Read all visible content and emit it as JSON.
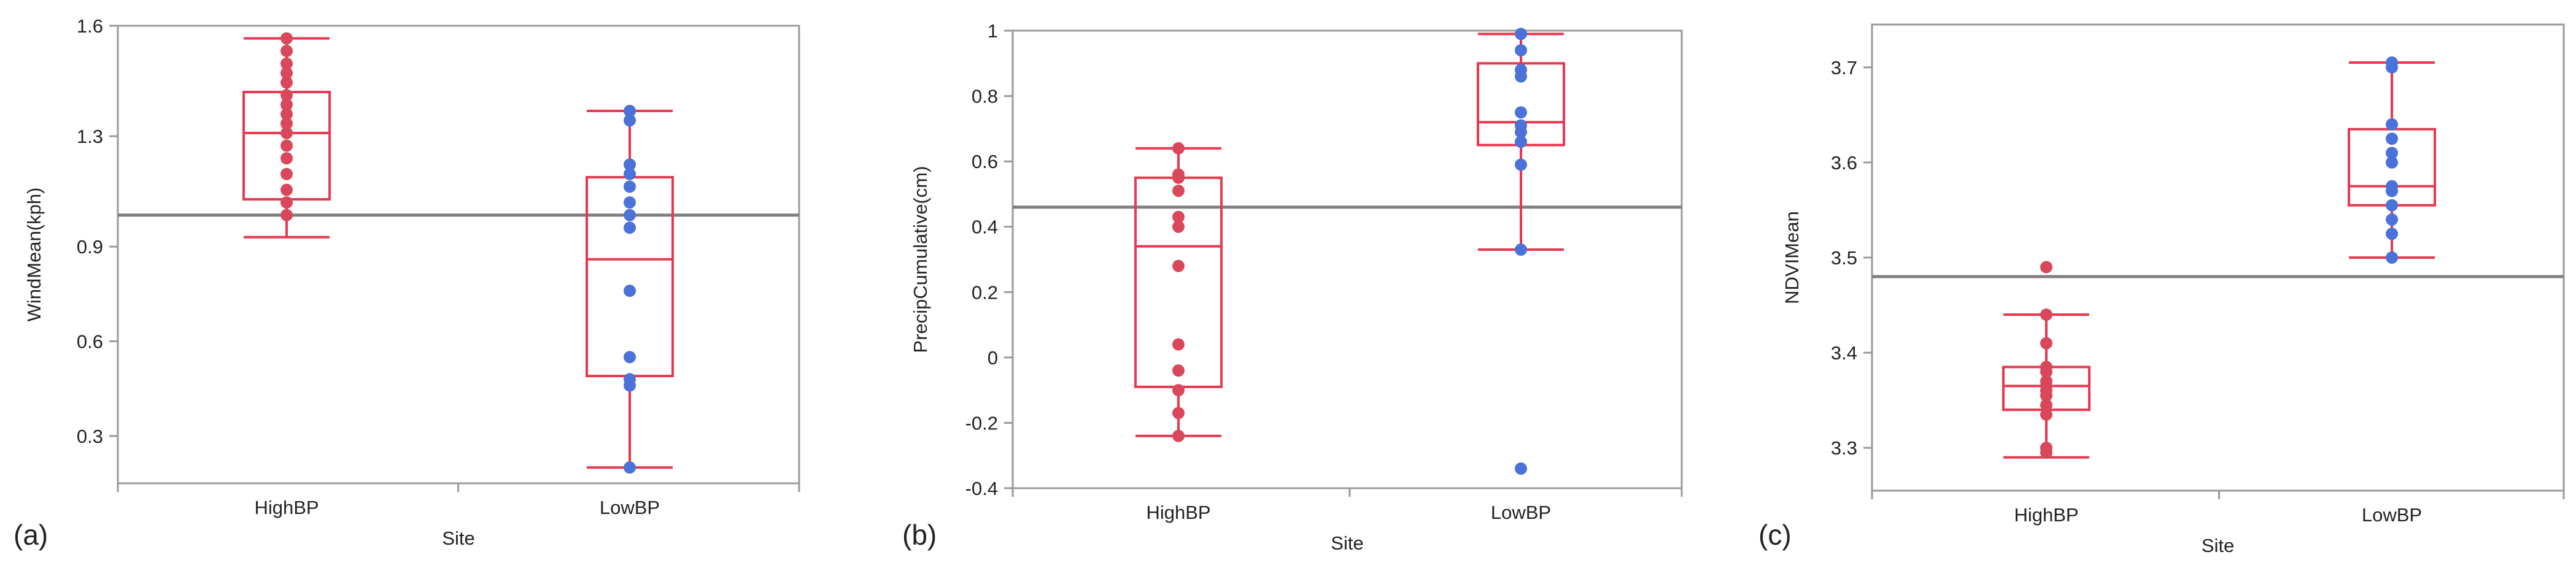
{
  "colors": {
    "high": "#d9475a",
    "low": "#4a72d8",
    "box": "#e8384f",
    "ref": "#7f7f7f",
    "frame": "#9a9a9a",
    "tick": "#9a9a9a"
  },
  "chart_data": [
    {
      "panel": "(a)",
      "type": "box",
      "xlabel": "Site",
      "ylabel": "WindMean(kph)",
      "categories": [
        "HighBP",
        "LowBP"
      ],
      "ylim": [
        0.15,
        1.6
      ],
      "yticks": [
        "0.3",
        "0.6",
        "0.9",
        "1.3",
        "1.6"
      ],
      "ytick_values": [
        0.3,
        0.6,
        0.9,
        1.25,
        1.6
      ],
      "reference_line": 1.0,
      "boxes": [
        {
          "category": "HighBP",
          "whisker_low": 0.93,
          "q1": 1.05,
          "median": 1.26,
          "q3": 1.39,
          "whisker_high": 1.56
        },
        {
          "category": "LowBP",
          "whisker_low": 0.2,
          "q1": 0.49,
          "median": 0.86,
          "q3": 1.12,
          "whisker_high": 1.33
        }
      ],
      "points": [
        {
          "category": "HighBP",
          "color": "high",
          "values": [
            1.56,
            1.52,
            1.48,
            1.45,
            1.42,
            1.38,
            1.35,
            1.32,
            1.29,
            1.26,
            1.22,
            1.18,
            1.13,
            1.08,
            1.04,
            1.0
          ]
        },
        {
          "category": "LowBP",
          "color": "low",
          "values": [
            1.33,
            1.3,
            1.16,
            1.13,
            1.09,
            1.04,
            1.0,
            0.96,
            0.76,
            0.55,
            0.48,
            0.46,
            0.2
          ]
        }
      ]
    },
    {
      "panel": "(b)",
      "type": "box",
      "xlabel": "Site",
      "ylabel": "PrecipCumulative(cm)",
      "categories": [
        "HighBP",
        "LowBP"
      ],
      "ylim": [
        -0.4,
        1.0
      ],
      "yticks": [
        "-0.4",
        "-0.2",
        "0",
        "0.2",
        "0.4",
        "0.6",
        "0.8",
        "1"
      ],
      "ytick_values": [
        -0.4,
        -0.2,
        0,
        0.2,
        0.4,
        0.6,
        0.8,
        1.0
      ],
      "reference_line": 0.46,
      "boxes": [
        {
          "category": "HighBP",
          "whisker_low": -0.24,
          "q1": -0.09,
          "median": 0.34,
          "q3": 0.55,
          "whisker_high": 0.64
        },
        {
          "category": "LowBP",
          "whisker_low": 0.33,
          "q1": 0.65,
          "median": 0.72,
          "q3": 0.9,
          "whisker_high": 0.99
        }
      ],
      "points": [
        {
          "category": "HighBP",
          "color": "high",
          "values": [
            0.64,
            0.56,
            0.55,
            0.51,
            0.43,
            0.4,
            0.28,
            0.04,
            -0.04,
            -0.1,
            -0.17,
            -0.24
          ]
        },
        {
          "category": "LowBP",
          "color": "low",
          "values": [
            0.99,
            0.94,
            0.88,
            0.86,
            0.75,
            0.71,
            0.69,
            0.66,
            0.59,
            0.33,
            -0.34
          ]
        }
      ]
    },
    {
      "panel": "(c)",
      "type": "box",
      "xlabel": "Site",
      "ylabel": "NDVIMean",
      "categories": [
        "HighBP",
        "LowBP"
      ],
      "ylim": [
        3.255,
        3.745
      ],
      "yticks": [
        "3.3",
        "3.4",
        "3.5",
        "3.6",
        "3.7"
      ],
      "ytick_values": [
        3.3,
        3.4,
        3.5,
        3.6,
        3.7
      ],
      "reference_line": 3.48,
      "boxes": [
        {
          "category": "HighBP",
          "whisker_low": 3.29,
          "q1": 3.34,
          "median": 3.365,
          "q3": 3.385,
          "whisker_high": 3.44
        },
        {
          "category": "LowBP",
          "whisker_low": 3.5,
          "q1": 3.555,
          "median": 3.575,
          "q3": 3.635,
          "whisker_high": 3.705
        }
      ],
      "points": [
        {
          "category": "HighBP",
          "color": "high",
          "values": [
            3.49,
            3.44,
            3.41,
            3.385,
            3.38,
            3.37,
            3.365,
            3.36,
            3.355,
            3.345,
            3.335,
            3.3,
            3.295
          ]
        },
        {
          "category": "LowBP",
          "color": "low",
          "values": [
            3.705,
            3.7,
            3.64,
            3.625,
            3.61,
            3.6,
            3.575,
            3.57,
            3.555,
            3.54,
            3.525,
            3.5
          ]
        }
      ]
    }
  ]
}
